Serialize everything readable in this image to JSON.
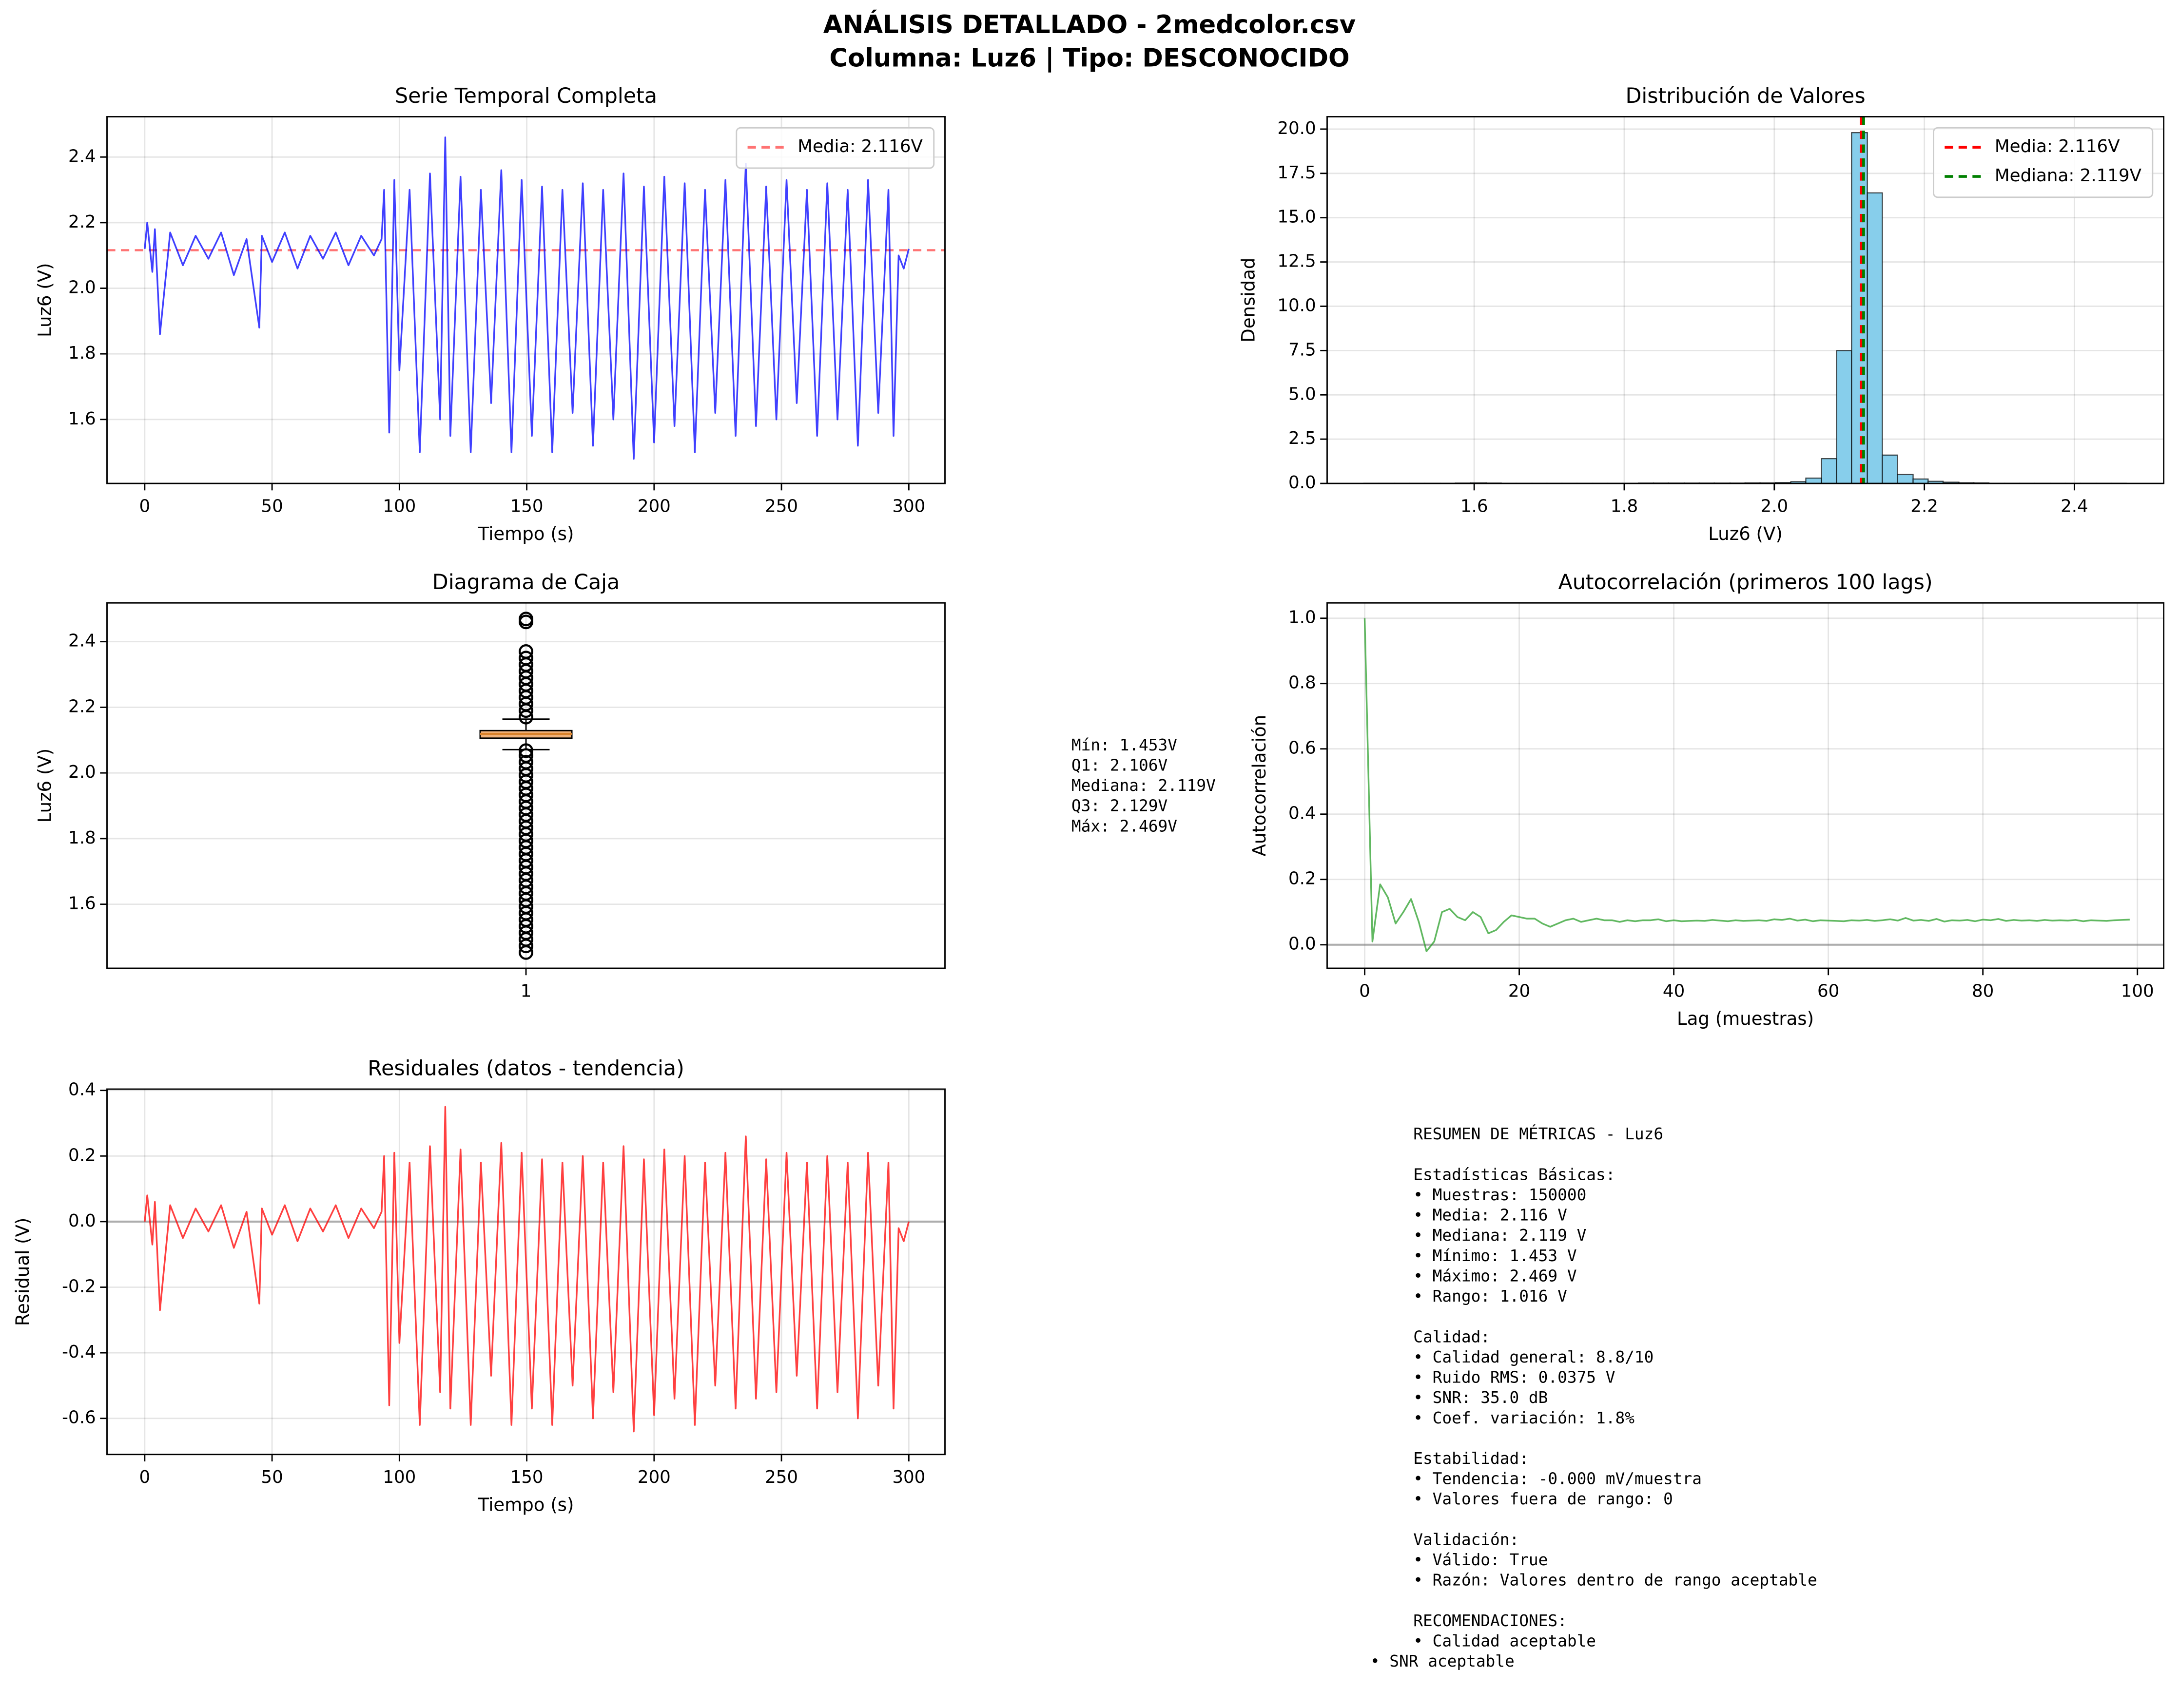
{
  "figure": {
    "title": "ANÁLISIS DETALLADO - 2medcolor.csv",
    "subtitle": "Columna: Luz6 | Tipo: DESCONOCIDO"
  },
  "chart_data": [
    {
      "type": "line",
      "title": "Serie Temporal Completa",
      "xlabel": "Tiempo (s)",
      "ylabel": "Luz6 (V)",
      "color": "blue",
      "grid": true,
      "xlim": [
        -14.8,
        314.2
      ],
      "xticks": [
        0,
        50,
        100,
        150,
        200,
        250,
        300
      ],
      "ylim": [
        1.405,
        2.523
      ],
      "yticks": [
        1.6,
        1.8,
        {
          "value": 2.0,
          "label": "2.0"
        },
        2.2,
        2.4
      ],
      "x": [
        0,
        1,
        3,
        4,
        6,
        10,
        15,
        20,
        25,
        30,
        35,
        40,
        45,
        46,
        50,
        55,
        60,
        65,
        70,
        75,
        80,
        85,
        90,
        93,
        94,
        96,
        98,
        100,
        104,
        108,
        112,
        116,
        118,
        120,
        124,
        128,
        132,
        136,
        140,
        144,
        148,
        152,
        156,
        160,
        164,
        168,
        172,
        176,
        180,
        184,
        188,
        192,
        196,
        200,
        204,
        208,
        212,
        216,
        220,
        224,
        228,
        232,
        236,
        240,
        244,
        248,
        252,
        256,
        260,
        264,
        268,
        272,
        276,
        280,
        284,
        288,
        292,
        294,
        296,
        298,
        300
      ],
      "values": [
        2.12,
        2.2,
        2.05,
        2.18,
        1.86,
        2.17,
        2.07,
        2.16,
        2.09,
        2.17,
        2.04,
        2.15,
        1.88,
        2.16,
        2.08,
        2.17,
        2.06,
        2.16,
        2.09,
        2.17,
        2.07,
        2.16,
        2.1,
        2.15,
        2.3,
        1.56,
        2.33,
        1.75,
        2.3,
        1.5,
        2.35,
        1.6,
        2.46,
        1.55,
        2.34,
        1.5,
        2.3,
        1.65,
        2.36,
        1.5,
        2.33,
        1.55,
        2.31,
        1.5,
        2.3,
        1.62,
        2.32,
        1.52,
        2.3,
        1.6,
        2.35,
        1.48,
        2.31,
        1.53,
        2.34,
        1.58,
        2.32,
        1.5,
        2.3,
        1.62,
        2.33,
        1.55,
        2.38,
        1.58,
        2.31,
        1.6,
        2.33,
        1.65,
        2.3,
        1.55,
        2.32,
        1.6,
        2.3,
        1.52,
        2.33,
        1.62,
        2.3,
        1.55,
        2.1,
        2.06,
        2.12
      ],
      "hlines": [
        {
          "value": 2.116,
          "label": "Media: 2.116V",
          "color": "red",
          "linestyle": "dashed"
        }
      ],
      "legend": "upper right"
    },
    {
      "type": "hist",
      "title": "Distribución de Valores",
      "xlabel": "Luz6 (V)",
      "ylabel": "Densidad",
      "color": "skyblue",
      "grid": true,
      "xlim": [
        1.404,
        2.519
      ],
      "xticks": [
        1.6,
        1.8,
        {
          "value": 2.0,
          "label": "2.0"
        },
        2.2,
        2.4
      ],
      "ylim": [
        0,
        20.7
      ],
      "yticks": [
        {
          "value": 0,
          "label": "0.0"
        },
        2.5,
        {
          "value": 5,
          "label": "5.0"
        },
        7.5,
        {
          "value": 10,
          "label": "10.0"
        },
        12.5,
        {
          "value": 15,
          "label": "15.0"
        },
        17.5,
        {
          "value": 20,
          "label": "20.0"
        }
      ],
      "bins": [
        1.453,
        1.473,
        1.494,
        1.514,
        1.534,
        1.555,
        1.575,
        1.595,
        1.616,
        1.636,
        1.656,
        1.677,
        1.697,
        1.717,
        1.737,
        1.758,
        1.778,
        1.798,
        1.819,
        1.839,
        1.859,
        1.88,
        1.9,
        1.92,
        1.941,
        1.961,
        1.981,
        2.002,
        2.022,
        2.042,
        2.063,
        2.083,
        2.103,
        2.124,
        2.144,
        2.164,
        2.185,
        2.205,
        2.225,
        2.246,
        2.266,
        2.286,
        2.307,
        2.327,
        2.347,
        2.368,
        2.388,
        2.408,
        2.429,
        2.449,
        2.469
      ],
      "counts": [
        0.01,
        0.01,
        0.01,
        0.01,
        0.01,
        0.01,
        0.02,
        0.03,
        0.02,
        0.01,
        0.01,
        0.01,
        0.01,
        0.01,
        0.01,
        0.01,
        0.01,
        0.01,
        0.02,
        0.02,
        0.02,
        0.02,
        0.02,
        0.02,
        0.02,
        0.03,
        0.03,
        0.05,
        0.1,
        0.3,
        1.4,
        7.5,
        19.8,
        16.4,
        1.6,
        0.5,
        0.25,
        0.12,
        0.07,
        0.04,
        0.03,
        0.01,
        0.01,
        0.01,
        0.01,
        0.01,
        0.01,
        0.01,
        0.01,
        0.01
      ],
      "vlines": [
        {
          "value": 2.116,
          "label": "Media: 2.116V",
          "color": "red",
          "linestyle": "dashed"
        },
        {
          "value": 2.119,
          "label": "Mediana: 2.119V",
          "color": "green",
          "linestyle": "dashed"
        }
      ],
      "legend": "upper right"
    },
    {
      "type": "box",
      "title": "Diagrama de Caja",
      "ylabel": "Luz6 (V)",
      "grid": true,
      "color": "#f0b27a",
      "xlim": [
        0.5,
        1.5
      ],
      "xticks": [
        1
      ],
      "ylim": [
        1.405,
        2.518
      ],
      "yticks": [
        1.6,
        1.8,
        {
          "value": 2.0,
          "label": "2.0"
        },
        2.2,
        2.4
      ],
      "box": {
        "q1": 2.106,
        "median": 2.119,
        "q3": 2.129,
        "whislo": 2.071,
        "whishi": 2.164,
        "fliers": [
          1.453,
          1.473,
          1.493,
          1.513,
          1.533,
          1.553,
          1.573,
          1.593,
          1.613,
          1.633,
          1.653,
          1.673,
          1.693,
          1.713,
          1.733,
          1.753,
          1.773,
          1.793,
          1.813,
          1.833,
          1.853,
          1.873,
          1.893,
          1.913,
          1.933,
          1.953,
          1.973,
          1.993,
          2.013,
          2.033,
          2.053,
          2.068,
          2.17,
          2.19,
          2.21,
          2.23,
          2.25,
          2.27,
          2.29,
          2.31,
          2.33,
          2.35,
          2.37,
          2.46,
          2.469
        ]
      },
      "stats_text": [
        "Mín: 1.453V",
        "Q1: 2.106V",
        "Mediana: 2.119V",
        "Q3: 2.129V",
        "Máx: 2.469V"
      ]
    },
    {
      "type": "line",
      "title": "Autocorrelación (primeros 100 lags)",
      "xlabel": "Lag (muestras)",
      "ylabel": "Autocorrelación",
      "color": "#2ca02c",
      "grid": true,
      "xlim": [
        -4.86,
        103.4
      ],
      "xticks": [
        0,
        20,
        40,
        60,
        80,
        100
      ],
      "ylim": [
        -0.072,
        1.047
      ],
      "yticks": [
        {
          "value": 0,
          "label": "0.0"
        },
        0.2,
        0.4,
        0.6,
        0.8,
        {
          "value": 1,
          "label": "1.0"
        }
      ],
      "x": [
        0,
        1,
        2,
        3,
        4,
        5,
        6,
        7,
        8,
        9,
        10,
        11,
        12,
        13,
        14,
        15,
        16,
        17,
        18,
        19,
        20,
        21,
        22,
        23,
        24,
        25,
        26,
        27,
        28,
        29,
        30,
        31,
        32,
        33,
        34,
        35,
        36,
        37,
        38,
        39,
        40,
        41,
        42,
        43,
        44,
        45,
        46,
        47,
        48,
        49,
        50,
        51,
        52,
        53,
        54,
        55,
        56,
        57,
        58,
        59,
        60,
        61,
        62,
        63,
        64,
        65,
        66,
        67,
        68,
        69,
        70,
        71,
        72,
        73,
        74,
        75,
        76,
        77,
        78,
        79,
        80,
        81,
        82,
        83,
        84,
        85,
        86,
        87,
        88,
        89,
        90,
        91,
        92,
        93,
        94,
        95,
        96,
        97,
        98,
        99
      ],
      "values": [
        1.0,
        0.01,
        0.185,
        0.145,
        0.065,
        0.1,
        0.14,
        0.07,
        -0.02,
        0.01,
        0.1,
        0.11,
        0.085,
        0.075,
        0.1,
        0.085,
        0.035,
        0.045,
        0.07,
        0.09,
        0.085,
        0.08,
        0.08,
        0.065,
        0.055,
        0.065,
        0.075,
        0.08,
        0.07,
        0.075,
        0.08,
        0.075,
        0.075,
        0.07,
        0.075,
        0.072,
        0.075,
        0.075,
        0.078,
        0.072,
        0.075,
        0.072,
        0.073,
        0.074,
        0.073,
        0.076,
        0.074,
        0.072,
        0.075,
        0.073,
        0.074,
        0.075,
        0.073,
        0.078,
        0.076,
        0.08,
        0.074,
        0.077,
        0.072,
        0.075,
        0.074,
        0.073,
        0.072,
        0.075,
        0.074,
        0.076,
        0.073,
        0.075,
        0.078,
        0.074,
        0.082,
        0.074,
        0.076,
        0.073,
        0.079,
        0.071,
        0.075,
        0.074,
        0.076,
        0.072,
        0.077,
        0.075,
        0.079,
        0.073,
        0.076,
        0.074,
        0.075,
        0.073,
        0.076,
        0.074,
        0.075,
        0.074,
        0.076,
        0.072,
        0.075,
        0.074,
        0.073,
        0.075,
        0.076,
        0.077
      ],
      "hlines": [
        {
          "value": 0,
          "color": "gray",
          "linestyle": "solid"
        }
      ]
    },
    {
      "type": "line",
      "title": "Residuales (datos - tendencia)",
      "xlabel": "Tiempo (s)",
      "ylabel": "Residual (V)",
      "color": "red",
      "grid": true,
      "xlim": [
        -14.8,
        314.2
      ],
      "xticks": [
        0,
        50,
        100,
        150,
        200,
        250,
        300
      ],
      "ylim": [
        -0.71,
        0.404
      ],
      "yticks": [
        -0.6,
        -0.4,
        -0.2,
        {
          "value": 0,
          "label": "0.0"
        },
        0.2,
        0.4
      ],
      "x": [
        0,
        1,
        3,
        4,
        6,
        10,
        15,
        20,
        25,
        30,
        35,
        40,
        45,
        46,
        50,
        55,
        60,
        65,
        70,
        75,
        80,
        85,
        90,
        93,
        94,
        96,
        98,
        100,
        104,
        108,
        112,
        116,
        118,
        120,
        124,
        128,
        132,
        136,
        140,
        144,
        148,
        152,
        156,
        160,
        164,
        168,
        172,
        176,
        180,
        184,
        188,
        192,
        196,
        200,
        204,
        208,
        212,
        216,
        220,
        224,
        228,
        232,
        236,
        240,
        244,
        248,
        252,
        256,
        260,
        264,
        268,
        272,
        276,
        280,
        284,
        288,
        292,
        294,
        296,
        298,
        300
      ],
      "values": [
        0,
        0.08,
        -0.07,
        0.06,
        -0.27,
        0.05,
        -0.05,
        0.04,
        -0.03,
        0.05,
        -0.08,
        0.03,
        -0.25,
        0.04,
        -0.04,
        0.05,
        -0.06,
        0.04,
        -0.03,
        0.05,
        -0.05,
        0.04,
        -0.02,
        0.03,
        0.2,
        -0.56,
        0.21,
        -0.37,
        0.18,
        -0.62,
        0.23,
        -0.52,
        0.35,
        -0.57,
        0.22,
        -0.62,
        0.18,
        -0.47,
        0.24,
        -0.62,
        0.21,
        -0.57,
        0.19,
        -0.62,
        0.18,
        -0.5,
        0.2,
        -0.6,
        0.18,
        -0.52,
        0.23,
        -0.64,
        0.19,
        -0.59,
        0.22,
        -0.54,
        0.2,
        -0.62,
        0.18,
        -0.5,
        0.21,
        -0.57,
        0.26,
        -0.54,
        0.19,
        -0.52,
        0.21,
        -0.47,
        0.18,
        -0.57,
        0.2,
        -0.52,
        0.18,
        -0.6,
        0.21,
        -0.5,
        0.18,
        -0.57,
        -0.02,
        -0.06,
        0.0
      ],
      "hlines": [
        {
          "value": 0,
          "color": "gray",
          "linestyle": "solid"
        }
      ]
    }
  ],
  "summary": {
    "title": "RESUMEN DE MÉTRICAS - Luz6",
    "sections": [
      {
        "heading": "Estadísticas Básicas:",
        "items": [
          "• Muestras: 150000",
          "• Media: 2.116 V",
          "• Mediana: 2.119 V",
          "• Mínimo: 1.453 V",
          "• Máximo: 2.469 V",
          "• Rango: 1.016 V"
        ]
      },
      {
        "heading": "Calidad:",
        "items": [
          "• Calidad general: 8.8/10",
          "• Ruido RMS: 0.0375 V",
          "• SNR: 35.0 dB",
          "• Coef. variación: 1.8%"
        ]
      },
      {
        "heading": "Estabilidad:",
        "items": [
          "• Tendencia: -0.000 mV/muestra",
          "• Valores fuera de rango: 0"
        ]
      },
      {
        "heading": "Validación:",
        "items": [
          "• Válido: True",
          "• Razón: Valores dentro de rango aceptable"
        ]
      },
      {
        "heading": "RECOMENDACIONES:",
        "items": [
          "• Calidad aceptable",
          "• SNR aceptable"
        ]
      }
    ]
  }
}
